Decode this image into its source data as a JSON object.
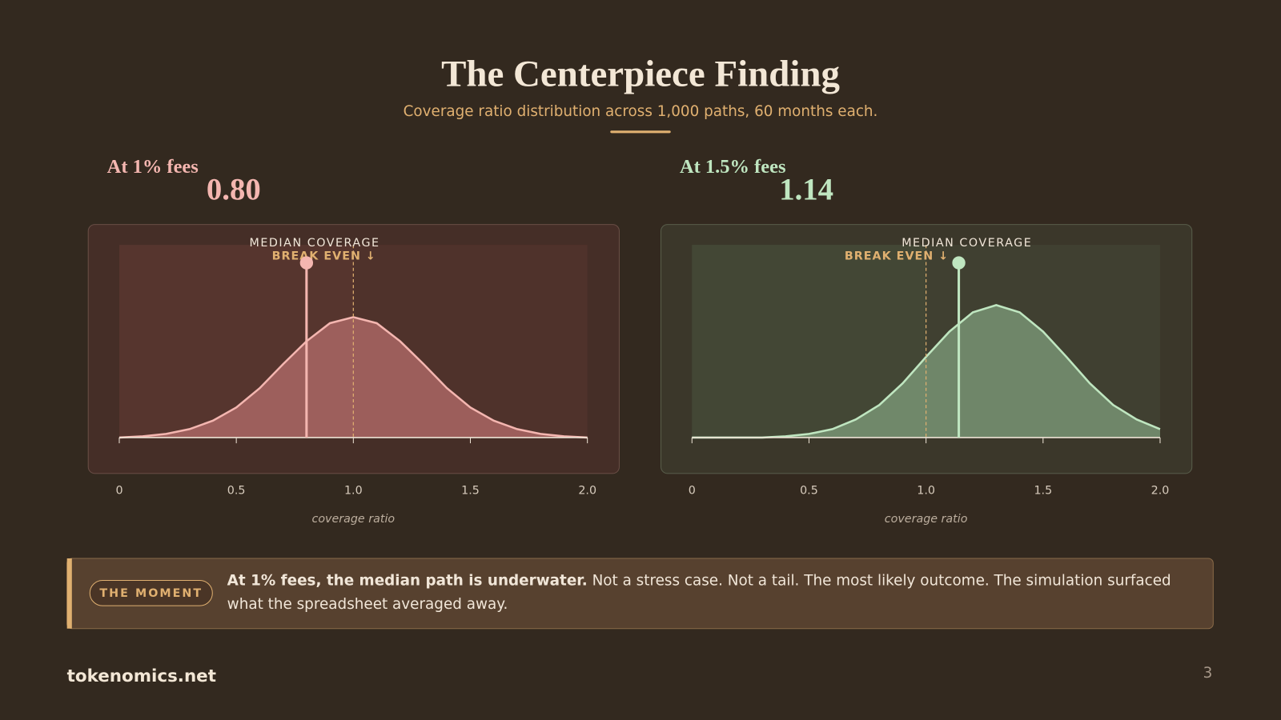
{
  "header": {
    "title": "The Centerpiece Finding",
    "subtitle": "Coverage ratio distribution across 1,000 paths, 60 months each."
  },
  "chart_data": [
    {
      "type": "area",
      "title": "At 1% fees",
      "median": {
        "value": 0.8,
        "label": "0.80"
      },
      "median_title": "MEDIAN COVERAGE",
      "break_even": {
        "value": 1,
        "label": "BREAK EVEN ↓"
      },
      "color": "#f4b6b0",
      "fill": "#b56e6c",
      "tint": "#5a3630",
      "x": [
        0,
        0.1,
        0.2,
        0.3,
        0.4,
        0.5,
        0.6,
        0.7,
        0.8,
        0.9,
        1,
        1.1,
        1.2,
        1.3,
        1.4,
        1.5,
        1.6,
        1.7,
        1.8,
        1.9,
        2
      ],
      "values": [
        0,
        0.01,
        0.03,
        0.07,
        0.14,
        0.25,
        0.41,
        0.61,
        0.8,
        0.95,
        1,
        0.95,
        0.8,
        0.61,
        0.41,
        0.25,
        0.14,
        0.07,
        0.03,
        0.01,
        0
      ],
      "xlim": [
        0,
        2
      ],
      "ylim": [
        0,
        1.6
      ],
      "xticks": [
        0,
        0.5,
        {
          "value": 1,
          "label": "1.0"
        },
        1.5,
        {
          "value": 2,
          "label": "2.0"
        }
      ],
      "xlabel": "coverage ratio"
    },
    {
      "type": "area",
      "title": "At 1.5% fees",
      "median": {
        "value": 1.14,
        "label": "1.14"
      },
      "median_title": "MEDIAN COVERAGE",
      "break_even": {
        "value": 1,
        "label": "BREAK EVEN ↓"
      },
      "color": "#bfe6c0",
      "fill": "#7f9e7c",
      "tint": "#454a38",
      "x": [
        0,
        0.1,
        0.2,
        0.3,
        0.4,
        0.5,
        0.6,
        0.7,
        0.8,
        0.9,
        1,
        1.1,
        1.2,
        1.3,
        1.4,
        1.5,
        1.6,
        1.7,
        1.8,
        1.9,
        2
      ],
      "values": [
        0,
        0,
        0,
        0,
        0.01,
        0.03,
        0.07,
        0.15,
        0.27,
        0.45,
        0.67,
        0.88,
        1.04,
        1.1,
        1.04,
        0.88,
        0.67,
        0.45,
        0.27,
        0.15,
        0.07
      ],
      "xlim": [
        0,
        2
      ],
      "ylim": [
        0,
        1.6
      ],
      "xticks": [
        0,
        0.5,
        {
          "value": 1,
          "label": "1.0"
        },
        1.5,
        {
          "value": 2,
          "label": "2.0"
        }
      ],
      "xlabel": "coverage ratio"
    }
  ],
  "callout": {
    "tag": "THE MOMENT",
    "lead": "At 1% fees, the median path is underwater.",
    "body": "Not a stress case. Not a tail. The most likely outcome. The simulation surfaced what the spreadsheet averaged away."
  },
  "footer": {
    "brand": "tokenomics.net",
    "page": "3"
  }
}
